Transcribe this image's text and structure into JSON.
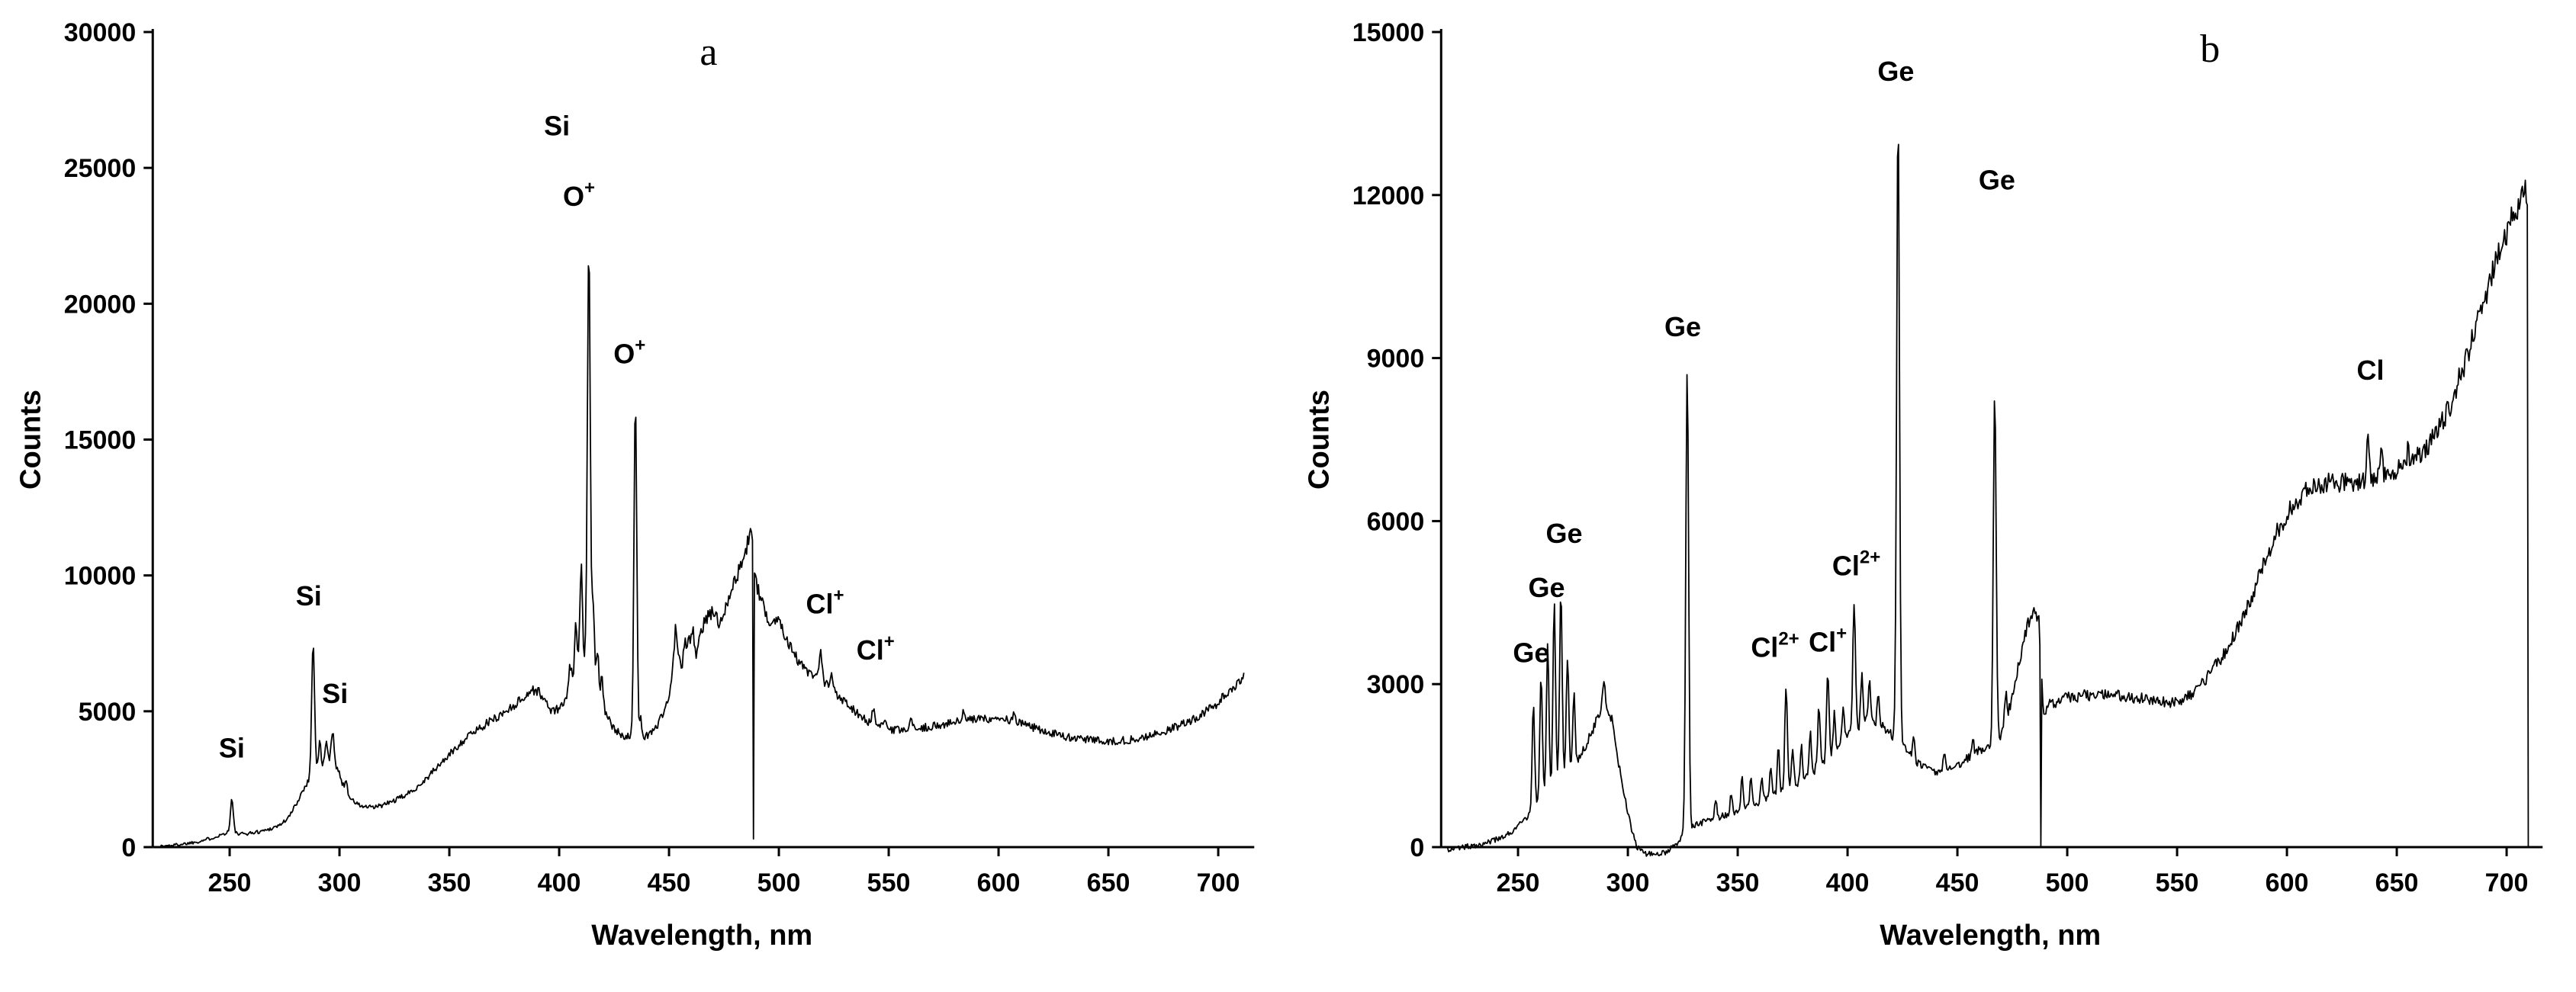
{
  "figure": {
    "background": "#ffffff",
    "line_color": "#000000",
    "text_color": "#000000"
  },
  "chart_data": [
    {
      "id": "a",
      "type": "line",
      "panel_label": {
        "text": "a",
        "x": 468,
        "y": 28800
      },
      "xlabel": "Wavelength, nm",
      "ylabel": "Counts",
      "xlim": [
        215,
        715
      ],
      "ylim": [
        0,
        30000
      ],
      "xticks": [
        250,
        300,
        350,
        400,
        450,
        500,
        550,
        600,
        650,
        700
      ],
      "yticks": [
        0,
        5000,
        10000,
        15000,
        20000,
        25000,
        30000
      ],
      "grid": false,
      "legend": false,
      "seed": 1337,
      "x_start": 218,
      "x_end": 712,
      "step": 0.45,
      "noise": {
        "base": 55,
        "frac": 0.022
      },
      "clamp_min": 0,
      "baseline": [
        [
          218,
          30
        ],
        [
          224,
          70
        ],
        [
          230,
          130
        ],
        [
          236,
          210
        ],
        [
          242,
          340
        ],
        [
          247,
          480
        ],
        [
          251,
          620
        ],
        [
          254,
          470
        ],
        [
          258,
          500
        ],
        [
          263,
          560
        ],
        [
          268,
          660
        ],
        [
          273,
          820
        ],
        [
          277,
          1100
        ],
        [
          281,
          1700
        ],
        [
          284,
          2200
        ],
        [
          287,
          2600
        ],
        [
          290,
          2900
        ],
        [
          293,
          3100
        ],
        [
          296,
          3300
        ],
        [
          299,
          2900
        ],
        [
          302,
          2200
        ],
        [
          306,
          1700
        ],
        [
          310,
          1500
        ],
        [
          315,
          1450
        ],
        [
          320,
          1550
        ],
        [
          326,
          1750
        ],
        [
          332,
          2000
        ],
        [
          338,
          2400
        ],
        [
          344,
          2900
        ],
        [
          350,
          3400
        ],
        [
          356,
          3900
        ],
        [
          362,
          4300
        ],
        [
          368,
          4600
        ],
        [
          374,
          4900
        ],
        [
          379,
          5200
        ],
        [
          383,
          5450
        ],
        [
          388,
          5800
        ],
        [
          391,
          5700
        ],
        [
          394,
          5300
        ],
        [
          397,
          5000
        ],
        [
          400,
          5100
        ],
        [
          403,
          5400
        ],
        [
          406,
          6000
        ],
        [
          409,
          6600
        ],
        [
          411,
          6900
        ],
        [
          413,
          7000
        ],
        [
          415,
          6500
        ],
        [
          417,
          5900
        ],
        [
          419,
          5500
        ],
        [
          421,
          5000
        ],
        [
          424,
          4400
        ],
        [
          428,
          4150
        ],
        [
          432,
          4050
        ],
        [
          436,
          4000
        ],
        [
          440,
          4100
        ],
        [
          445,
          4500
        ],
        [
          450,
          5500
        ],
        [
          453,
          7300
        ],
        [
          456,
          6500
        ],
        [
          459,
          7800
        ],
        [
          462,
          7000
        ],
        [
          466,
          8300
        ],
        [
          470,
          8700
        ],
        [
          473,
          8200
        ],
        [
          477,
          9200
        ],
        [
          480,
          9800
        ],
        [
          483,
          10400
        ],
        [
          486,
          11200
        ],
        [
          488,
          10900
        ],
        [
          490,
          9600
        ],
        [
          493,
          8800
        ],
        [
          496,
          8300
        ],
        [
          500,
          8400
        ],
        [
          503,
          7800
        ],
        [
          507,
          7100
        ],
        [
          511,
          6600
        ],
        [
          515,
          6300
        ],
        [
          519,
          6100
        ],
        [
          523,
          5900
        ],
        [
          527,
          5600
        ],
        [
          531,
          5300
        ],
        [
          535,
          5000
        ],
        [
          539,
          4700
        ],
        [
          543,
          4450
        ],
        [
          547,
          4400
        ],
        [
          551,
          4300
        ],
        [
          556,
          4300
        ],
        [
          562,
          4350
        ],
        [
          568,
          4420
        ],
        [
          575,
          4520
        ],
        [
          582,
          4620
        ],
        [
          589,
          4700
        ],
        [
          596,
          4740
        ],
        [
          603,
          4700
        ],
        [
          610,
          4550
        ],
        [
          617,
          4380
        ],
        [
          624,
          4200
        ],
        [
          631,
          4060
        ],
        [
          638,
          3980
        ],
        [
          645,
          3930
        ],
        [
          652,
          3900
        ],
        [
          659,
          3940
        ],
        [
          666,
          4040
        ],
        [
          673,
          4180
        ],
        [
          680,
          4400
        ],
        [
          687,
          4650
        ],
        [
          693,
          4900
        ],
        [
          699,
          5250
        ],
        [
          704,
          5650
        ],
        [
          708,
          6000
        ],
        [
          712,
          6250
        ]
      ],
      "peaks": [
        [
          251,
          1150,
          0.9
        ],
        [
          288,
          4900,
          0.9
        ],
        [
          291,
          900,
          0.7
        ],
        [
          294,
          700,
          0.7
        ],
        [
          297,
          1150,
          0.8
        ],
        [
          303,
          400,
          0.7
        ],
        [
          405,
          900,
          0.8
        ],
        [
          407.5,
          1800,
          0.8
        ],
        [
          410,
          3600,
          0.8
        ],
        [
          413.5,
          15400,
          0.9
        ],
        [
          415.5,
          2700,
          0.8
        ],
        [
          417.5,
          1500,
          0.7
        ],
        [
          419.5,
          900,
          0.7
        ],
        [
          434.7,
          12400,
          0.9
        ],
        [
          437,
          800,
          0.7
        ],
        [
          453,
          900,
          0.8
        ],
        [
          457,
          600,
          0.7
        ],
        [
          461,
          700,
          0.7
        ],
        [
          487,
          700,
          0.8
        ],
        [
          519,
          1100,
          0.9
        ],
        [
          524,
          500,
          0.8
        ],
        [
          543,
          650,
          0.9
        ],
        [
          548,
          350,
          0.8
        ],
        [
          560,
          350,
          0.8
        ],
        [
          584,
          300,
          0.8
        ],
        [
          607,
          250,
          0.8
        ]
      ],
      "dips": [
        [
          488.6,
          300
        ],
        [
          711.9,
          30
        ]
      ],
      "annotations": [
        {
          "text": "Si",
          "x": 251,
          "y": 3300
        },
        {
          "text": "Si",
          "x": 286,
          "y": 8900
        },
        {
          "text": "Si",
          "x": 298,
          "y": 5300
        },
        {
          "text": "Si",
          "x": 399,
          "y": 26200
        },
        {
          "text": "O",
          "sup": "+",
          "x": 409,
          "y": 23600
        },
        {
          "text": "O",
          "sup": "+",
          "x": 432,
          "y": 17800
        },
        {
          "text": "Cl",
          "sup": "+",
          "x": 521,
          "y": 8600
        },
        {
          "text": "Cl",
          "sup": "+",
          "x": 544,
          "y": 6900
        }
      ]
    },
    {
      "id": "b",
      "type": "line",
      "panel_label": {
        "text": "b",
        "x": 565,
        "y": 14450
      },
      "xlabel": "Wavelength, nm",
      "ylabel": "Counts",
      "xlim": [
        215,
        715
      ],
      "ylim": [
        0,
        15000
      ],
      "xticks": [
        250,
        300,
        350,
        400,
        450,
        500,
        550,
        600,
        650,
        700
      ],
      "yticks": [
        0,
        3000,
        6000,
        9000,
        12000,
        15000
      ],
      "grid": false,
      "legend": false,
      "seed": 777,
      "x_start": 218,
      "x_end": 710,
      "step": 0.45,
      "noise": {
        "base": 50,
        "frac": 0.02
      },
      "clamp_min": -200,
      "baseline": [
        [
          218,
          -40
        ],
        [
          224,
          -10
        ],
        [
          230,
          30
        ],
        [
          236,
          80
        ],
        [
          242,
          160
        ],
        [
          247,
          280
        ],
        [
          252,
          450
        ],
        [
          256,
          650
        ],
        [
          260,
          850
        ],
        [
          264,
          1050
        ],
        [
          268,
          1250
        ],
        [
          272,
          1400
        ],
        [
          276,
          1550
        ],
        [
          280,
          1800
        ],
        [
          284,
          2150
        ],
        [
          287,
          2500
        ],
        [
          290,
          2600
        ],
        [
          293,
          2300
        ],
        [
          296,
          1500
        ],
        [
          300,
          600
        ],
        [
          304,
          0
        ],
        [
          308,
          -120
        ],
        [
          313,
          -140
        ],
        [
          318,
          -80
        ],
        [
          322,
          60
        ],
        [
          325,
          220
        ],
        [
          328,
          350
        ],
        [
          332,
          430
        ],
        [
          337,
          500
        ],
        [
          342,
          560
        ],
        [
          347,
          620
        ],
        [
          352,
          700
        ],
        [
          357,
          780
        ],
        [
          362,
          860
        ],
        [
          367,
          960
        ],
        [
          372,
          1060
        ],
        [
          376,
          1150
        ],
        [
          381,
          1280
        ],
        [
          386,
          1450
        ],
        [
          391,
          1600
        ],
        [
          395,
          1780
        ],
        [
          399,
          1980
        ],
        [
          403,
          2150
        ],
        [
          407,
          2280
        ],
        [
          411,
          2320
        ],
        [
          415,
          2250
        ],
        [
          419,
          2100
        ],
        [
          423,
          1950
        ],
        [
          427,
          1750
        ],
        [
          432,
          1550
        ],
        [
          437,
          1430
        ],
        [
          442,
          1380
        ],
        [
          447,
          1420
        ],
        [
          452,
          1550
        ],
        [
          457,
          1700
        ],
        [
          462,
          1820
        ],
        [
          466,
          1900
        ],
        [
          470,
          2080
        ],
        [
          474,
          2600
        ],
        [
          478,
          3400
        ],
        [
          482,
          4100
        ],
        [
          485,
          4300
        ],
        [
          487,
          4250
        ],
        [
          489,
          2500
        ],
        [
          492,
          2620
        ],
        [
          496,
          2700
        ],
        [
          502,
          2760
        ],
        [
          510,
          2800
        ],
        [
          518,
          2810
        ],
        [
          526,
          2780
        ],
        [
          534,
          2730
        ],
        [
          541,
          2690
        ],
        [
          548,
          2660
        ],
        [
          554,
          2740
        ],
        [
          560,
          2950
        ],
        [
          566,
          3250
        ],
        [
          572,
          3600
        ],
        [
          578,
          4050
        ],
        [
          584,
          4600
        ],
        [
          590,
          5250
        ],
        [
          596,
          5850
        ],
        [
          602,
          6250
        ],
        [
          608,
          6530
        ],
        [
          614,
          6680
        ],
        [
          620,
          6720
        ],
        [
          626,
          6700
        ],
        [
          632,
          6720
        ],
        [
          638,
          6800
        ],
        [
          644,
          6870
        ],
        [
          650,
          6950
        ],
        [
          656,
          7050
        ],
        [
          662,
          7250
        ],
        [
          668,
          7600
        ],
        [
          674,
          8100
        ],
        [
          680,
          8800
        ],
        [
          686,
          9550
        ],
        [
          691,
          10250
        ],
        [
          696,
          10900
        ],
        [
          700,
          11350
        ],
        [
          704,
          11750
        ],
        [
          707,
          12000
        ],
        [
          709.5,
          12100
        ]
      ],
      "peaks": [
        [
          257,
          1900,
          0.8
        ],
        [
          260.5,
          2300,
          0.8
        ],
        [
          263.5,
          2700,
          0.8
        ],
        [
          266.5,
          3300,
          0.8
        ],
        [
          269.5,
          3400,
          0.8
        ],
        [
          272.5,
          2100,
          0.8
        ],
        [
          275.5,
          1400,
          0.7
        ],
        [
          289,
          550,
          0.8
        ],
        [
          327,
          8550,
          0.9
        ],
        [
          340,
          300,
          0.7
        ],
        [
          347,
          400,
          0.7
        ],
        [
          352,
          600,
          0.7
        ],
        [
          356,
          500,
          0.7
        ],
        [
          361,
          450,
          0.7
        ],
        [
          365,
          600,
          0.7
        ],
        [
          368.5,
          900,
          0.7
        ],
        [
          372,
          1900,
          0.8
        ],
        [
          375,
          700,
          0.7
        ],
        [
          379,
          600,
          0.7
        ],
        [
          383,
          800,
          0.7
        ],
        [
          387,
          1100,
          0.8
        ],
        [
          391,
          1550,
          0.8
        ],
        [
          394,
          800,
          0.7
        ],
        [
          398,
          600,
          0.7
        ],
        [
          403,
          2400,
          0.8
        ],
        [
          406.5,
          900,
          0.7
        ],
        [
          410,
          700,
          0.7
        ],
        [
          414,
          500,
          0.7
        ],
        [
          423,
          11550,
          0.9
        ],
        [
          430,
          400,
          0.7
        ],
        [
          444,
          300,
          0.7
        ],
        [
          457,
          350,
          0.7
        ],
        [
          467,
          6400,
          0.9
        ],
        [
          472,
          500,
          0.7
        ],
        [
          637,
          800,
          0.8
        ],
        [
          643,
          350,
          0.7
        ],
        [
          655,
          300,
          0.7
        ]
      ],
      "dips": [
        [
          488.2,
          10
        ],
        [
          709.9,
          20
        ]
      ],
      "annotations": [
        {
          "text": "Ge",
          "x": 256,
          "y": 3400
        },
        {
          "text": "Ge",
          "x": 263,
          "y": 4600
        },
        {
          "text": "Ge",
          "x": 271,
          "y": 5600
        },
        {
          "text": "Ge",
          "x": 325,
          "y": 9400
        },
        {
          "text": "Cl",
          "sup": "2+",
          "x": 367,
          "y": 3500
        },
        {
          "text": "Cl",
          "sup": "+",
          "x": 391,
          "y": 3600
        },
        {
          "text": "Cl",
          "sup": "2+",
          "x": 404,
          "y": 5000
        },
        {
          "text": "Ge",
          "x": 422,
          "y": 14100
        },
        {
          "text": "Ge",
          "x": 468,
          "y": 12100
        },
        {
          "text": "Cl",
          "x": 638,
          "y": 8600
        }
      ]
    }
  ]
}
